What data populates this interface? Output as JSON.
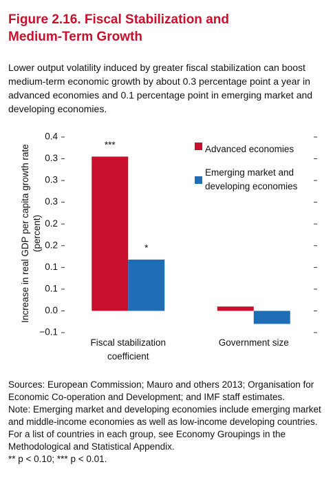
{
  "chart_data": {
    "type": "bar",
    "title": "Figure 2.16. Fiscal Stabilization and Medium-Term Growth",
    "subtitle": "Lower output volatility induced by greater fiscal stabilization can boost medium-term economic growth by about 0.3 percentage point a year in advanced economies and 0.1 percentage point in emerging market and developing economies.",
    "y_label": "Increase in real GDP per capita growth rate (percent)",
    "categories": [
      "Fiscal stabilization coefficient",
      "Government size"
    ],
    "series": [
      {
        "name": "Advanced economies",
        "color": "#c8102e",
        "values": [
          0.355,
          0.01
        ],
        "significance": [
          "***",
          null
        ]
      },
      {
        "name": "Emerging market and developing economies",
        "color": "#1f6db5",
        "values": [
          0.118,
          -0.03
        ],
        "significance": [
          "*",
          null
        ]
      }
    ],
    "ylim": [
      -0.05,
      0.4
    ],
    "yticks": [
      {
        "value": -0.05,
        "label": "−0.1"
      },
      {
        "value": 0,
        "label": "0.0"
      },
      {
        "value": 0.05,
        "label": "0.1"
      },
      0.1,
      {
        "value": 0.15,
        "label": "0.2"
      },
      0.2,
      {
        "value": 0.25,
        "label": "0.3"
      },
      0.3,
      {
        "value": 0.35,
        "label": "0.3"
      },
      0.4
    ],
    "legend": "top-right",
    "notes": [
      "Sources: European Commission; Mauro and others 2013; Organisation for Economic Co-operation and Development; and IMF staff estimates.",
      "Note: Emerging market and developing economies include emerging market and middle-income economies as well as low-income developing countries. For a list of countries in each group, see Economy Groupings in the Methodological and Statistical Appendix.",
      "** p < 0.10; *** p < 0.01."
    ]
  }
}
